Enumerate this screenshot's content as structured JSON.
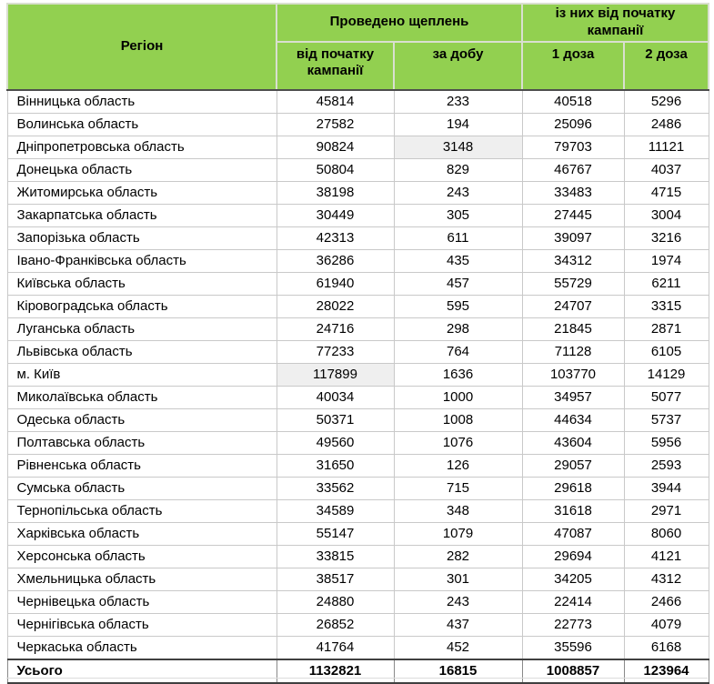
{
  "colors": {
    "header_bg": "#92D050",
    "header_divider": "#d9dfd0",
    "cell_border": "#c9c9c9",
    "dark_border": "#404040",
    "header_bottom": "#4d4d4d",
    "highlight_bg": "#efefef",
    "text": "#000000"
  },
  "table": {
    "header": {
      "region": "Регіон",
      "group_vaccinations": "Проведено щеплень",
      "group_since_start": "із них від початку кампанії",
      "col_since_start": "від початку кампанії",
      "col_per_day": "за добу",
      "col_dose1": "1 доза",
      "col_dose2": "2 доза"
    },
    "rows": [
      {
        "region": "Вінницька область",
        "since_start": "45814",
        "per_day": "233",
        "dose1": "40518",
        "dose2": "5296"
      },
      {
        "region": "Волинська область",
        "since_start": "27582",
        "per_day": "194",
        "dose1": "25096",
        "dose2": "2486"
      },
      {
        "region": "Дніпропетровська область",
        "since_start": "90824",
        "per_day": "3148",
        "dose1": "79703",
        "dose2": "11121",
        "highlight": "per_day"
      },
      {
        "region": "Донецька область",
        "since_start": "50804",
        "per_day": "829",
        "dose1": "46767",
        "dose2": "4037"
      },
      {
        "region": "Житомирська область",
        "since_start": "38198",
        "per_day": "243",
        "dose1": "33483",
        "dose2": "4715"
      },
      {
        "region": "Закарпатська область",
        "since_start": "30449",
        "per_day": "305",
        "dose1": "27445",
        "dose2": "3004"
      },
      {
        "region": "Запорізька область",
        "since_start": "42313",
        "per_day": "611",
        "dose1": "39097",
        "dose2": "3216"
      },
      {
        "region": "Івано-Франківська область",
        "since_start": "36286",
        "per_day": "435",
        "dose1": "34312",
        "dose2": "1974"
      },
      {
        "region": "Київська область",
        "since_start": "61940",
        "per_day": "457",
        "dose1": "55729",
        "dose2": "6211"
      },
      {
        "region": "Кіровоградська область",
        "since_start": "28022",
        "per_day": "595",
        "dose1": "24707",
        "dose2": "3315"
      },
      {
        "region": "Луганська область",
        "since_start": "24716",
        "per_day": "298",
        "dose1": "21845",
        "dose2": "2871"
      },
      {
        "region": "Львівська область",
        "since_start": "77233",
        "per_day": "764",
        "dose1": "71128",
        "dose2": "6105"
      },
      {
        "region": "м. Київ",
        "since_start": "117899",
        "per_day": "1636",
        "dose1": "103770",
        "dose2": "14129",
        "highlight": "since_start"
      },
      {
        "region": "Миколаївська область",
        "since_start": "40034",
        "per_day": "1000",
        "dose1": "34957",
        "dose2": "5077"
      },
      {
        "region": "Одеська область",
        "since_start": "50371",
        "per_day": "1008",
        "dose1": "44634",
        "dose2": "5737"
      },
      {
        "region": "Полтавська область",
        "since_start": "49560",
        "per_day": "1076",
        "dose1": "43604",
        "dose2": "5956"
      },
      {
        "region": "Рівненська область",
        "since_start": "31650",
        "per_day": "126",
        "dose1": "29057",
        "dose2": "2593"
      },
      {
        "region": "Сумська область",
        "since_start": "33562",
        "per_day": "715",
        "dose1": "29618",
        "dose2": "3944"
      },
      {
        "region": "Тернопільська область",
        "since_start": "34589",
        "per_day": "348",
        "dose1": "31618",
        "dose2": "2971"
      },
      {
        "region": "Харківська область",
        "since_start": "55147",
        "per_day": "1079",
        "dose1": "47087",
        "dose2": "8060"
      },
      {
        "region": "Херсонська область",
        "since_start": "33815",
        "per_day": "282",
        "dose1": "29694",
        "dose2": "4121"
      },
      {
        "region": "Хмельницька область",
        "since_start": "38517",
        "per_day": "301",
        "dose1": "34205",
        "dose2": "4312"
      },
      {
        "region": "Чернівецька область",
        "since_start": "24880",
        "per_day": "243",
        "dose1": "22414",
        "dose2": "2466"
      },
      {
        "region": "Чернігівська область",
        "since_start": "26852",
        "per_day": "437",
        "dose1": "22773",
        "dose2": "4079"
      },
      {
        "region": "Черкаська область",
        "since_start": "41764",
        "per_day": "452",
        "dose1": "35596",
        "dose2": "6168"
      }
    ],
    "total": {
      "region": "Усього",
      "since_start": "1132821",
      "per_day": "16815",
      "dose1": "1008857",
      "dose2": "123964"
    }
  }
}
